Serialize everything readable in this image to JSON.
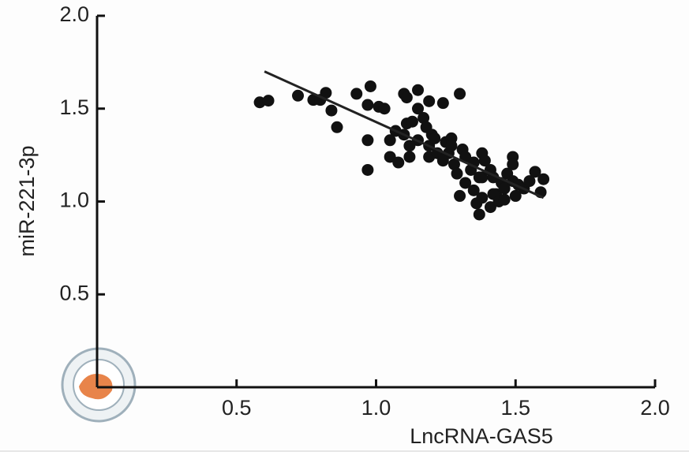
{
  "chart_data": {
    "type": "scatter",
    "x_label": "LncRNA-GAS5",
    "y_label": "miR-221-3p",
    "xlim": [
      0,
      2.0
    ],
    "ylim": [
      0,
      2.0
    ],
    "xticks": [
      0.5,
      {
        "value": 1.0,
        "label": "1.0"
      },
      1.5,
      {
        "value": 2.0,
        "label": "2.0"
      }
    ],
    "yticks": [
      0.5,
      {
        "value": 1.0,
        "label": "1.0"
      },
      1.5,
      {
        "value": 2.0,
        "label": "2.0"
      }
    ],
    "color": "#111111",
    "x": [
      0.583,
      0.614,
      0.72,
      0.775,
      0.8,
      0.82,
      0.84,
      0.86,
      0.93,
      0.98,
      0.97,
      1.01,
      1.03,
      0.97,
      0.97,
      1.05,
      1.08,
      1.1,
      1.11,
      1.15,
      1.19,
      1.24,
      1.3,
      1.15,
      1.17,
      1.11,
      1.13,
      1.07,
      1.1,
      1.05,
      1.12,
      1.18,
      1.2,
      1.15,
      1.19,
      1.19,
      1.22,
      1.25,
      1.27,
      1.26,
      1.28,
      1.31,
      1.32,
      1.3,
      1.34,
      1.35,
      1.36,
      1.37,
      1.38,
      1.38,
      1.39,
      1.41,
      1.42,
      1.41,
      1.43,
      1.45,
      1.46,
      1.47,
      1.49,
      1.49,
      1.49,
      1.5,
      1.51,
      1.53,
      1.55,
      1.57,
      1.6,
      1.59,
      1.32,
      1.37,
      1.29,
      1.24,
      1.21,
      1.35,
      1.42,
      1.44,
      1.46,
      1.38,
      1.27,
      1.12
    ],
    "values": [
      1.534,
      1.543,
      1.57,
      1.547,
      1.547,
      1.585,
      1.49,
      1.4,
      1.58,
      1.62,
      1.52,
      1.51,
      1.5,
      1.33,
      1.17,
      1.24,
      1.21,
      1.58,
      1.56,
      1.6,
      1.54,
      1.53,
      1.58,
      1.5,
      1.45,
      1.42,
      1.43,
      1.38,
      1.36,
      1.33,
      1.24,
      1.4,
      1.36,
      1.33,
      1.3,
      1.24,
      1.26,
      1.32,
      1.34,
      1.26,
      1.2,
      1.28,
      1.24,
      1.03,
      1.17,
      1.06,
      0.99,
      0.93,
      1.13,
      1.26,
      1.22,
      1.17,
      1.13,
      0.97,
      1.04,
      1.1,
      1.07,
      1.15,
      1.24,
      1.2,
      1.11,
      1.03,
      1.09,
      1.07,
      1.11,
      1.16,
      1.12,
      1.05,
      1.1,
      1.13,
      1.15,
      1.22,
      1.34,
      1.21,
      1.04,
      1.0,
      1.01,
      1.02,
      1.3,
      1.3
    ],
    "trend_line": {
      "x": [
        0.6,
        1.6
      ],
      "y": [
        1.7,
        1.02
      ],
      "color": "#222222"
    }
  }
}
